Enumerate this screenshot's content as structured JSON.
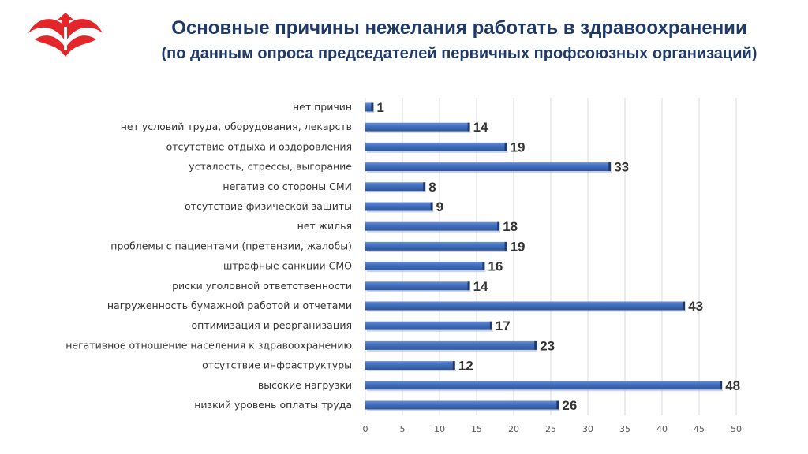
{
  "header": {
    "title": "Основные причины нежелания работать в здравоохранении",
    "subtitle": "(по данным опроса председателей первичных профсоюзных организаций)",
    "logo_icon": "union-hands-logo-icon",
    "logo_color": "#e3262a"
  },
  "colors": {
    "bar_top": "#6a8fd3",
    "bar_main": "#4472c4",
    "bar_bottom": "#2f5597",
    "bar_end": "#1f3a68",
    "grid": "#d9d9d9",
    "title": "#1f3a68"
  },
  "chart_data": {
    "type": "bar",
    "orientation": "horizontal",
    "title": "",
    "xlabel": "",
    "ylabel": "",
    "categories": [
      "нет причин",
      "нет условий труда, оборудования, лекарств",
      "отсутствие отдыха и оздоровления",
      "усталость, стрессы, выгорание",
      "негатив со стороны СМИ",
      "отсутствие физической защиты",
      "нет жилья",
      "проблемы с пациентами (претензии, жалобы)",
      "штрафные санкции СМО",
      "риски уголовной ответственности",
      "нагруженность бумажной работой и отчетами",
      "оптимизация и реорганизация",
      "негативное отношение населения к здравоохранению",
      "отсутствие инфраструктуры",
      "высокие нагрузки",
      "низкий уровень оплаты труда"
    ],
    "values": [
      1,
      14,
      19,
      33,
      8,
      9,
      18,
      19,
      16,
      14,
      43,
      17,
      23,
      12,
      48,
      26
    ],
    "xlim": [
      0,
      50
    ],
    "xticks": [
      "0",
      "5",
      "10",
      "15",
      "20",
      "25",
      "30",
      "35",
      "40",
      "45",
      "50"
    ],
    "grid": true,
    "legend": "none"
  }
}
